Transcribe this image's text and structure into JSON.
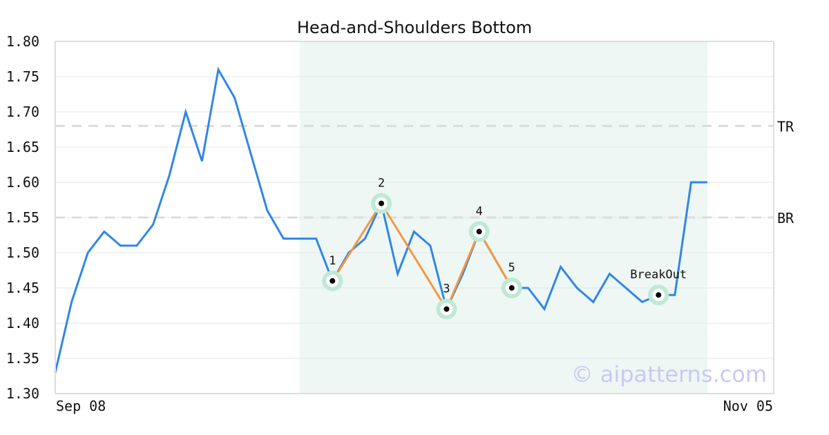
{
  "chart_data": {
    "type": "line",
    "title": "Head-and-Shoulders Bottom",
    "xlabel": "",
    "ylabel": "",
    "x_tick_labels": [
      "Sep 08",
      "Nov 05"
    ],
    "ylim": [
      1.3,
      1.8
    ],
    "y_ticks": [
      "1.30",
      "1.35",
      "1.40",
      "1.45",
      "1.50",
      "1.55",
      "1.60",
      "1.65",
      "1.70",
      "1.75",
      "1.80"
    ],
    "grid": true,
    "series": [
      {
        "color": "#2e86e8",
        "values": [
          1.33,
          1.43,
          1.5,
          1.53,
          1.51,
          1.51,
          1.54,
          1.61,
          1.7,
          1.63,
          1.76,
          1.72,
          1.64,
          1.56,
          1.52,
          1.52,
          1.52,
          1.46,
          1.5,
          1.52,
          1.57,
          1.47,
          1.53,
          1.51,
          1.42,
          1.47,
          1.53,
          1.49,
          1.45,
          1.45,
          1.42,
          1.48,
          1.45,
          1.43,
          1.47,
          1.45,
          1.43,
          1.44,
          1.44,
          1.6,
          1.6
        ]
      }
    ],
    "x_count": 45,
    "pattern_region": {
      "start_index": 15,
      "end_index": 40,
      "color": "#eef7f3"
    },
    "pattern_line_color": "#f5983f",
    "pattern_points": [
      {
        "label": "1",
        "index": 17,
        "value": 1.46
      },
      {
        "label": "2",
        "index": 20,
        "value": 1.57
      },
      {
        "label": "3",
        "index": 24,
        "value": 1.42
      },
      {
        "label": "4",
        "index": 26,
        "value": 1.53
      },
      {
        "label": "5",
        "index": 28,
        "value": 1.45
      }
    ],
    "breakout": {
      "label": "BreakOut",
      "index": 37,
      "value": 1.44
    },
    "levels": [
      {
        "label": "TR",
        "value": 1.68
      },
      {
        "label": "BR",
        "value": 1.55
      }
    ],
    "watermark": "© aipatterns.com"
  }
}
